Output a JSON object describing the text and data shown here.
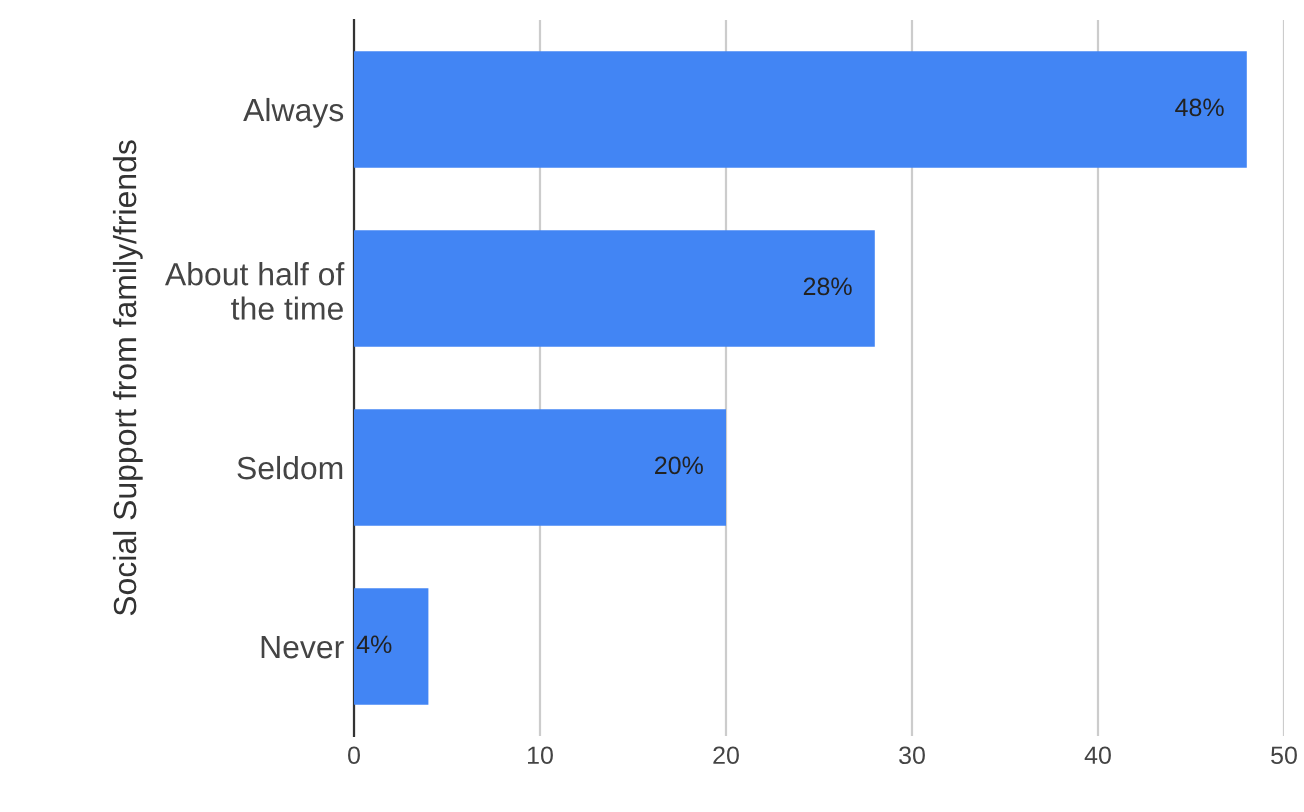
{
  "chart_data": {
    "type": "bar",
    "orientation": "horizontal",
    "ylabel": "Social Support from family/friends",
    "categories": [
      "Always",
      "About half of\nthe time",
      "Seldom",
      "Never"
    ],
    "values": [
      48,
      28,
      20,
      4
    ],
    "value_labels": [
      "48%",
      "28%",
      "20%",
      "4%"
    ],
    "color": "#4285f4",
    "xlim": [
      0,
      50
    ],
    "xticks": [
      0,
      10,
      20,
      30,
      40,
      50
    ],
    "grid": "x",
    "legend": false
  }
}
